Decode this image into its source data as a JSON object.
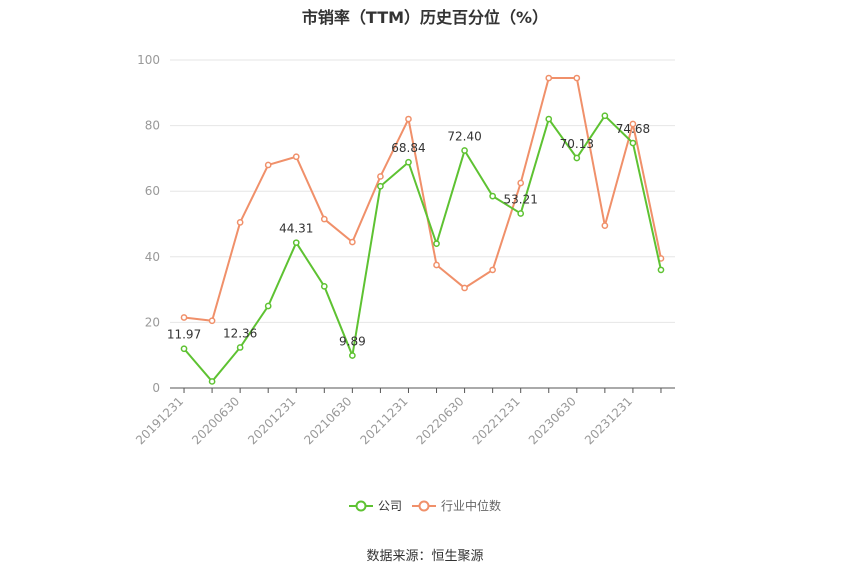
{
  "chart_data": {
    "type": "line",
    "title": "市销率（TTM）历史百分位（%）",
    "categories": [
      "20191231",
      "",
      "20200630",
      "",
      "20201231",
      "",
      "20210630",
      "",
      "20211231",
      "",
      "20220630",
      "",
      "20221231",
      "",
      "20230630",
      "",
      "20231231",
      ""
    ],
    "ylim": [
      0,
      100
    ],
    "yticks": [
      0,
      20,
      40,
      60,
      80,
      100
    ],
    "grid": true,
    "legend_position": "bottom",
    "series": [
      {
        "name": "公司",
        "color": "#5ec232",
        "values": [
          11.97,
          2.0,
          12.36,
          25.0,
          44.31,
          31.0,
          9.89,
          61.5,
          68.84,
          44.0,
          72.4,
          58.5,
          53.21,
          82.0,
          70.13,
          83.0,
          74.68,
          36.0
        ],
        "labels": [
          "11.97",
          "",
          "12.36",
          "",
          "44.31",
          "",
          "9.89",
          "",
          "68.84",
          "",
          "72.40",
          "",
          "53.21",
          "",
          "70.13",
          "",
          "74.68",
          ""
        ]
      },
      {
        "name": "行业中位数",
        "color": "#f0906a",
        "values": [
          21.5,
          20.5,
          50.5,
          68.0,
          70.5,
          51.5,
          44.5,
          64.5,
          82.0,
          37.5,
          30.5,
          36.0,
          62.5,
          94.5,
          94.5,
          49.5,
          80.5,
          39.5
        ]
      }
    ]
  },
  "source": "数据来源：恒生聚源"
}
